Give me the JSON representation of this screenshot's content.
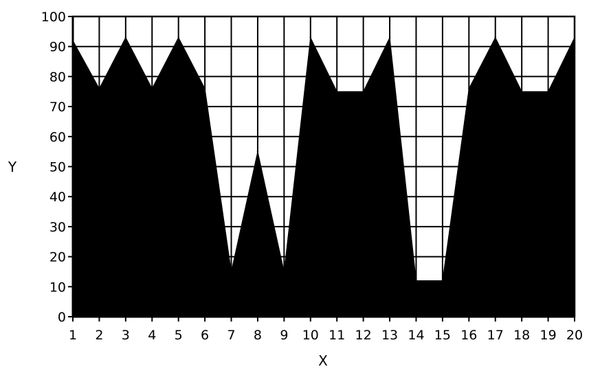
{
  "chart_data": {
    "type": "area",
    "title": "",
    "xlabel": "X",
    "ylabel": "Y",
    "x": [
      1,
      2,
      3,
      4,
      5,
      6,
      7,
      8,
      9,
      10,
      11,
      12,
      13,
      14,
      15,
      16,
      17,
      18,
      19,
      20
    ],
    "series": [
      {
        "values": [
          92,
          76,
          93,
          76,
          93,
          76,
          15,
          55,
          15,
          93,
          75,
          75,
          93,
          12,
          12,
          76,
          93,
          75,
          75,
          93
        ],
        "color": "#000000",
        "flat_segments": [
          [
            11,
            12
          ],
          [
            14,
            15
          ],
          [
            18,
            19
          ]
        ]
      }
    ],
    "xlim": [
      1,
      20
    ],
    "ylim": [
      0,
      100
    ],
    "xticks": [
      "1",
      "2",
      "3",
      "4",
      "5",
      "6",
      "7",
      "8",
      "9",
      "10",
      "11",
      "12",
      "13",
      "14",
      "15",
      "16",
      "17",
      "18",
      "19",
      "20"
    ],
    "yticks": [
      "0",
      "10",
      "20",
      "30",
      "40",
      "50",
      "60",
      "70",
      "80",
      "90",
      "100"
    ],
    "grid": true,
    "legend": "none"
  }
}
